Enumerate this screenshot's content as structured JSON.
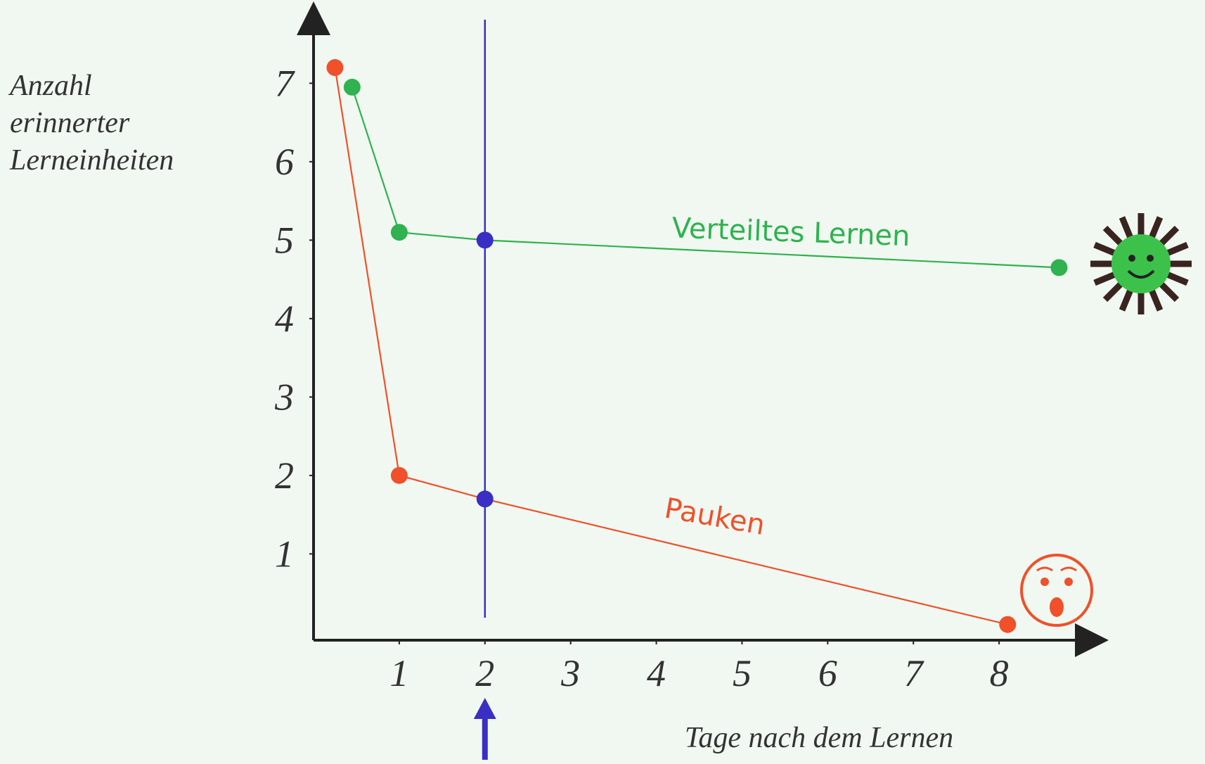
{
  "chart_data": {
    "type": "line",
    "y_label_lines": [
      "Anzahl",
      "erinnerter",
      "Lerneinheiten"
    ],
    "x_label": "Tage nach dem Lernen",
    "xlim": [
      0,
      9
    ],
    "ylim": [
      -0.1,
      7.9
    ],
    "xticks": [
      1,
      2,
      3,
      4,
      5,
      6,
      7,
      8
    ],
    "yticks": [
      1,
      2,
      3,
      4,
      5,
      6,
      7
    ],
    "highlight": {
      "x": 2,
      "color": "#3a2fc4"
    },
    "series": [
      {
        "name": "Verteiltes Lernen",
        "color": "#2fb24f",
        "x": [
          0.45,
          1,
          2,
          8.7
        ],
        "values": [
          6.95,
          5.1,
          5,
          4.65
        ]
      },
      {
        "name": "Pauken",
        "color": "#f0502a",
        "x": [
          0.25,
          1,
          2,
          8.1
        ],
        "values": [
          7.2,
          2,
          1.7,
          0.1
        ]
      }
    ]
  }
}
